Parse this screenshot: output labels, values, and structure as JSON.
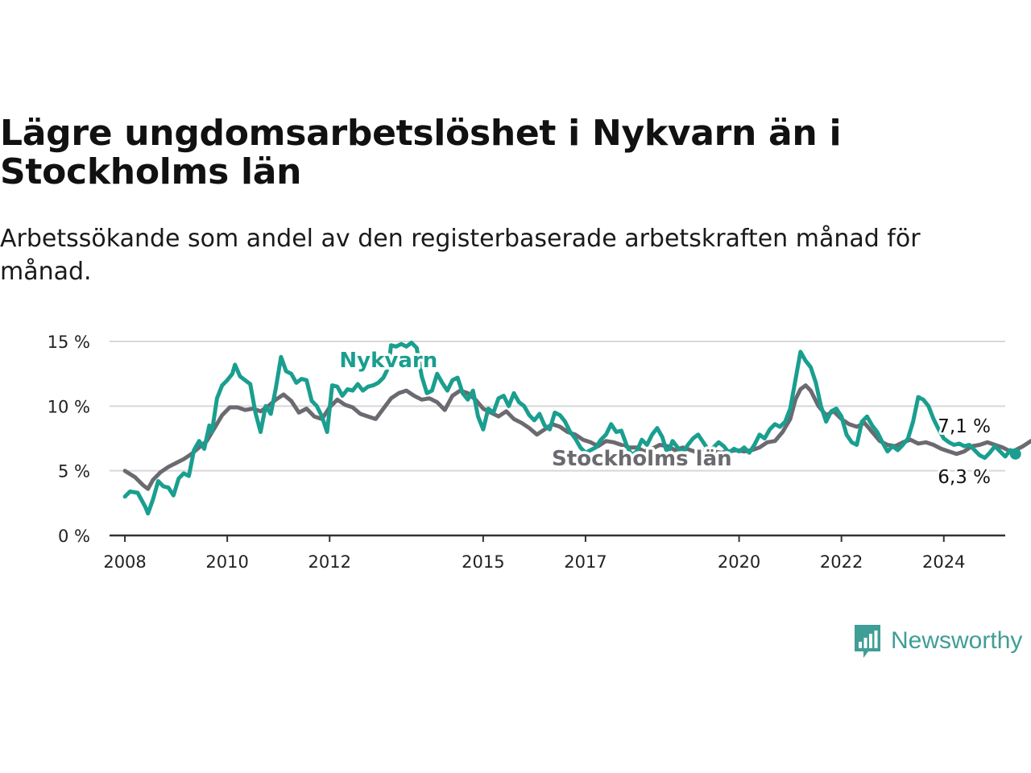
{
  "title": "Lägre ungdomsarbetslöshet i Nykvarn än i Stockholms län",
  "subtitle": "Arbetssökande som andel av den registerbaserade arbetskraften månad för månad.",
  "brand": {
    "name": "Newsworthy",
    "color": "#3f9e95"
  },
  "chart_data": {
    "type": "line",
    "title": "Lägre ungdomsarbetslöshet i Nykvarn än i Stockholms län",
    "subtitle": "Arbetssökande som andel av den registerbaserade arbetskraften månad för månad.",
    "xlabel": "",
    "ylabel": "",
    "grid": "horizontal",
    "xlim": [
      2007.7,
      2025.2
    ],
    "ylim": [
      0,
      15
    ],
    "yticks": [
      0,
      5,
      10,
      15
    ],
    "ytick_labels": [
      "0 %",
      "5 %",
      "10 %",
      "15 %"
    ],
    "xticks": [
      2008,
      2010,
      2012,
      2015,
      2017,
      2020,
      2022,
      2024
    ],
    "xtick_labels": [
      "2008",
      "2010",
      "2012",
      "2015",
      "2017",
      "2020",
      "2022",
      "2024"
    ],
    "series": [
      {
        "name": "Nykvarn",
        "color": "#1a9e8f",
        "label_at": [
          2013.15,
          13.0
        ],
        "end_value_label": "6,3 %",
        "points": [
          [
            2008.0,
            3.0
          ],
          [
            2008.1,
            3.4
          ],
          [
            2008.25,
            3.3
          ],
          [
            2008.4,
            2.2
          ],
          [
            2008.45,
            1.7
          ],
          [
            2008.55,
            2.8
          ],
          [
            2008.65,
            4.2
          ],
          [
            2008.75,
            3.8
          ],
          [
            2008.85,
            3.7
          ],
          [
            2008.95,
            3.1
          ],
          [
            2009.05,
            4.4
          ],
          [
            2009.15,
            4.8
          ],
          [
            2009.25,
            4.6
          ],
          [
            2009.35,
            6.6
          ],
          [
            2009.45,
            7.3
          ],
          [
            2009.55,
            6.7
          ],
          [
            2009.65,
            8.5
          ],
          [
            2009.7,
            8.0
          ],
          [
            2009.8,
            10.6
          ],
          [
            2009.9,
            11.6
          ],
          [
            2010.0,
            12.0
          ],
          [
            2010.1,
            12.5
          ],
          [
            2010.15,
            13.2
          ],
          [
            2010.25,
            12.3
          ],
          [
            2010.35,
            12.0
          ],
          [
            2010.45,
            11.7
          ],
          [
            2010.55,
            9.5
          ],
          [
            2010.65,
            8.0
          ],
          [
            2010.75,
            10.0
          ],
          [
            2010.85,
            9.4
          ],
          [
            2010.95,
            11.4
          ],
          [
            2011.05,
            13.8
          ],
          [
            2011.15,
            12.7
          ],
          [
            2011.25,
            12.5
          ],
          [
            2011.35,
            11.8
          ],
          [
            2011.45,
            12.1
          ],
          [
            2011.55,
            12.0
          ],
          [
            2011.65,
            10.4
          ],
          [
            2011.75,
            10.0
          ],
          [
            2011.85,
            9.2
          ],
          [
            2011.95,
            8.0
          ],
          [
            2012.05,
            11.6
          ],
          [
            2012.15,
            11.5
          ],
          [
            2012.25,
            10.8
          ],
          [
            2012.35,
            11.3
          ],
          [
            2012.45,
            11.2
          ],
          [
            2012.55,
            11.7
          ],
          [
            2012.65,
            11.2
          ],
          [
            2012.75,
            11.5
          ],
          [
            2012.85,
            11.6
          ],
          [
            2012.95,
            11.8
          ],
          [
            2013.05,
            12.2
          ],
          [
            2013.15,
            13.0
          ],
          [
            2013.2,
            14.7
          ],
          [
            2013.3,
            14.6
          ],
          [
            2013.4,
            14.8
          ],
          [
            2013.5,
            14.6
          ],
          [
            2013.6,
            14.9
          ],
          [
            2013.7,
            14.5
          ],
          [
            2013.8,
            12.3
          ],
          [
            2013.9,
            11.0
          ],
          [
            2014.0,
            11.2
          ],
          [
            2014.1,
            12.5
          ],
          [
            2014.2,
            11.8
          ],
          [
            2014.3,
            11.2
          ],
          [
            2014.4,
            12.0
          ],
          [
            2014.5,
            12.2
          ],
          [
            2014.6,
            11.0
          ],
          [
            2014.7,
            10.5
          ],
          [
            2014.8,
            11.2
          ],
          [
            2014.9,
            9.2
          ],
          [
            2015.0,
            8.2
          ],
          [
            2015.1,
            9.8
          ],
          [
            2015.2,
            9.5
          ],
          [
            2015.3,
            10.6
          ],
          [
            2015.4,
            10.8
          ],
          [
            2015.5,
            10.0
          ],
          [
            2015.6,
            11.0
          ],
          [
            2015.7,
            10.3
          ],
          [
            2015.8,
            10.0
          ],
          [
            2015.9,
            9.3
          ],
          [
            2016.0,
            8.9
          ],
          [
            2016.1,
            9.4
          ],
          [
            2016.2,
            8.5
          ],
          [
            2016.3,
            8.2
          ],
          [
            2016.4,
            9.5
          ],
          [
            2016.5,
            9.3
          ],
          [
            2016.6,
            8.8
          ],
          [
            2016.7,
            8.0
          ],
          [
            2016.8,
            7.5
          ],
          [
            2016.9,
            6.8
          ],
          [
            2017.0,
            6.4
          ],
          [
            2017.1,
            6.6
          ],
          [
            2017.2,
            6.8
          ],
          [
            2017.3,
            7.4
          ],
          [
            2017.4,
            7.8
          ],
          [
            2017.5,
            8.6
          ],
          [
            2017.6,
            8.0
          ],
          [
            2017.7,
            8.1
          ],
          [
            2017.8,
            7.0
          ],
          [
            2017.9,
            6.2
          ],
          [
            2018.0,
            6.5
          ],
          [
            2018.1,
            7.4
          ],
          [
            2018.2,
            7.0
          ],
          [
            2018.3,
            7.8
          ],
          [
            2018.4,
            8.3
          ],
          [
            2018.5,
            7.6
          ],
          [
            2018.6,
            6.3
          ],
          [
            2018.7,
            7.3
          ],
          [
            2018.8,
            6.8
          ],
          [
            2018.9,
            6.4
          ],
          [
            2019.0,
            7.0
          ],
          [
            2019.1,
            7.5
          ],
          [
            2019.2,
            7.8
          ],
          [
            2019.3,
            7.2
          ],
          [
            2019.4,
            6.6
          ],
          [
            2019.5,
            6.8
          ],
          [
            2019.6,
            7.2
          ],
          [
            2019.7,
            6.9
          ],
          [
            2019.8,
            6.4
          ],
          [
            2019.9,
            6.7
          ],
          [
            2020.0,
            6.5
          ],
          [
            2020.1,
            6.8
          ],
          [
            2020.2,
            6.4
          ],
          [
            2020.3,
            7.0
          ],
          [
            2020.4,
            7.8
          ],
          [
            2020.5,
            7.5
          ],
          [
            2020.6,
            8.2
          ],
          [
            2020.7,
            8.6
          ],
          [
            2020.8,
            8.4
          ],
          [
            2020.9,
            8.8
          ],
          [
            2021.0,
            9.8
          ],
          [
            2021.1,
            12.0
          ],
          [
            2021.2,
            14.2
          ],
          [
            2021.3,
            13.5
          ],
          [
            2021.4,
            13.0
          ],
          [
            2021.5,
            11.8
          ],
          [
            2021.6,
            10.0
          ],
          [
            2021.7,
            8.8
          ],
          [
            2021.8,
            9.6
          ],
          [
            2021.9,
            9.8
          ],
          [
            2022.0,
            9.2
          ],
          [
            2022.1,
            7.8
          ],
          [
            2022.2,
            7.2
          ],
          [
            2022.3,
            7.0
          ],
          [
            2022.4,
            8.8
          ],
          [
            2022.5,
            9.2
          ],
          [
            2022.6,
            8.5
          ],
          [
            2022.7,
            8.0
          ],
          [
            2022.8,
            7.2
          ],
          [
            2022.9,
            6.5
          ],
          [
            2023.0,
            6.9
          ],
          [
            2023.1,
            6.6
          ],
          [
            2023.2,
            7.0
          ],
          [
            2023.3,
            7.5
          ],
          [
            2023.4,
            8.8
          ],
          [
            2023.5,
            10.7
          ],
          [
            2023.6,
            10.5
          ],
          [
            2023.7,
            10.0
          ],
          [
            2023.8,
            9.0
          ],
          [
            2023.9,
            8.2
          ],
          [
            2024.0,
            7.5
          ],
          [
            2024.1,
            7.2
          ],
          [
            2024.2,
            7.0
          ],
          [
            2024.3,
            7.1
          ],
          [
            2024.4,
            6.9
          ],
          [
            2024.5,
            7.0
          ],
          [
            2024.6,
            6.6
          ],
          [
            2024.7,
            6.2
          ],
          [
            2024.8,
            6.0
          ],
          [
            2024.9,
            6.4
          ],
          [
            2025.0,
            6.9
          ],
          [
            2025.1,
            6.5
          ],
          [
            2025.2,
            6.1
          ],
          [
            2025.3,
            6.6
          ],
          [
            2025.4,
            6.3
          ]
        ]
      },
      {
        "name": "Stockholms län",
        "color": "#6b6a70",
        "label_at": [
          2018.1,
          5.4
        ],
        "end_value_label": "7,1 %",
        "points": [
          [
            2008.0,
            5.0
          ],
          [
            2008.2,
            4.5
          ],
          [
            2008.35,
            3.9
          ],
          [
            2008.45,
            3.6
          ],
          [
            2008.55,
            4.3
          ],
          [
            2008.7,
            4.9
          ],
          [
            2008.85,
            5.3
          ],
          [
            2009.0,
            5.6
          ],
          [
            2009.15,
            5.9
          ],
          [
            2009.3,
            6.3
          ],
          [
            2009.45,
            6.8
          ],
          [
            2009.6,
            7.3
          ],
          [
            2009.75,
            8.3
          ],
          [
            2009.9,
            9.3
          ],
          [
            2010.05,
            9.9
          ],
          [
            2010.2,
            9.9
          ],
          [
            2010.35,
            9.7
          ],
          [
            2010.5,
            9.8
          ],
          [
            2010.65,
            9.6
          ],
          [
            2010.8,
            10.0
          ],
          [
            2010.95,
            10.5
          ],
          [
            2011.1,
            10.9
          ],
          [
            2011.25,
            10.4
          ],
          [
            2011.4,
            9.5
          ],
          [
            2011.55,
            9.8
          ],
          [
            2011.7,
            9.2
          ],
          [
            2011.85,
            9.0
          ],
          [
            2012.0,
            9.9
          ],
          [
            2012.15,
            10.5
          ],
          [
            2012.3,
            10.1
          ],
          [
            2012.45,
            9.9
          ],
          [
            2012.6,
            9.4
          ],
          [
            2012.75,
            9.2
          ],
          [
            2012.9,
            9.0
          ],
          [
            2013.05,
            9.8
          ],
          [
            2013.2,
            10.6
          ],
          [
            2013.35,
            11.0
          ],
          [
            2013.5,
            11.2
          ],
          [
            2013.65,
            10.8
          ],
          [
            2013.8,
            10.5
          ],
          [
            2013.95,
            10.6
          ],
          [
            2014.1,
            10.3
          ],
          [
            2014.25,
            9.7
          ],
          [
            2014.4,
            10.8
          ],
          [
            2014.55,
            11.2
          ],
          [
            2014.7,
            11.0
          ],
          [
            2014.85,
            10.5
          ],
          [
            2015.0,
            9.8
          ],
          [
            2015.15,
            9.5
          ],
          [
            2015.3,
            9.2
          ],
          [
            2015.45,
            9.6
          ],
          [
            2015.6,
            9.0
          ],
          [
            2015.75,
            8.7
          ],
          [
            2015.9,
            8.3
          ],
          [
            2016.05,
            7.8
          ],
          [
            2016.2,
            8.2
          ],
          [
            2016.35,
            8.6
          ],
          [
            2016.5,
            8.4
          ],
          [
            2016.65,
            8.0
          ],
          [
            2016.8,
            7.8
          ],
          [
            2016.95,
            7.4
          ],
          [
            2017.1,
            7.2
          ],
          [
            2017.25,
            6.9
          ],
          [
            2017.4,
            7.3
          ],
          [
            2017.55,
            7.2
          ],
          [
            2017.7,
            7.0
          ],
          [
            2017.85,
            6.8
          ],
          [
            2018.0,
            6.8
          ],
          [
            2018.15,
            6.5
          ],
          [
            2018.3,
            6.7
          ],
          [
            2018.45,
            7.0
          ],
          [
            2018.6,
            6.9
          ],
          [
            2018.75,
            6.6
          ],
          [
            2018.9,
            6.8
          ],
          [
            2019.05,
            6.6
          ],
          [
            2019.2,
            6.4
          ],
          [
            2019.35,
            6.6
          ],
          [
            2019.5,
            6.5
          ],
          [
            2019.65,
            6.4
          ],
          [
            2019.8,
            6.5
          ],
          [
            2019.95,
            6.6
          ],
          [
            2020.1,
            6.5
          ],
          [
            2020.25,
            6.6
          ],
          [
            2020.4,
            6.8
          ],
          [
            2020.55,
            7.2
          ],
          [
            2020.7,
            7.3
          ],
          [
            2020.85,
            8.0
          ],
          [
            2021.0,
            9.0
          ],
          [
            2021.1,
            10.5
          ],
          [
            2021.2,
            11.3
          ],
          [
            2021.3,
            11.6
          ],
          [
            2021.4,
            11.2
          ],
          [
            2021.55,
            10.0
          ],
          [
            2021.7,
            9.3
          ],
          [
            2021.85,
            9.6
          ],
          [
            2022.0,
            9.0
          ],
          [
            2022.15,
            8.6
          ],
          [
            2022.3,
            8.4
          ],
          [
            2022.45,
            8.7
          ],
          [
            2022.6,
            8.0
          ],
          [
            2022.75,
            7.3
          ],
          [
            2022.9,
            7.0
          ],
          [
            2023.05,
            6.9
          ],
          [
            2023.2,
            7.2
          ],
          [
            2023.35,
            7.4
          ],
          [
            2023.5,
            7.1
          ],
          [
            2023.65,
            7.2
          ],
          [
            2023.8,
            7.0
          ],
          [
            2023.95,
            6.7
          ],
          [
            2024.1,
            6.5
          ],
          [
            2024.25,
            6.3
          ],
          [
            2024.4,
            6.5
          ],
          [
            2024.55,
            6.9
          ],
          [
            2024.7,
            7.0
          ],
          [
            2024.85,
            7.2
          ],
          [
            2025.0,
            7.0
          ],
          [
            2025.15,
            6.8
          ],
          [
            2025.3,
            6.5
          ],
          [
            2025.4,
            6.6
          ],
          [
            2025.55,
            6.9
          ],
          [
            2025.7,
            7.3
          ],
          [
            2025.85,
            7.4
          ],
          [
            2026.0,
            7.1
          ]
        ]
      }
    ]
  }
}
